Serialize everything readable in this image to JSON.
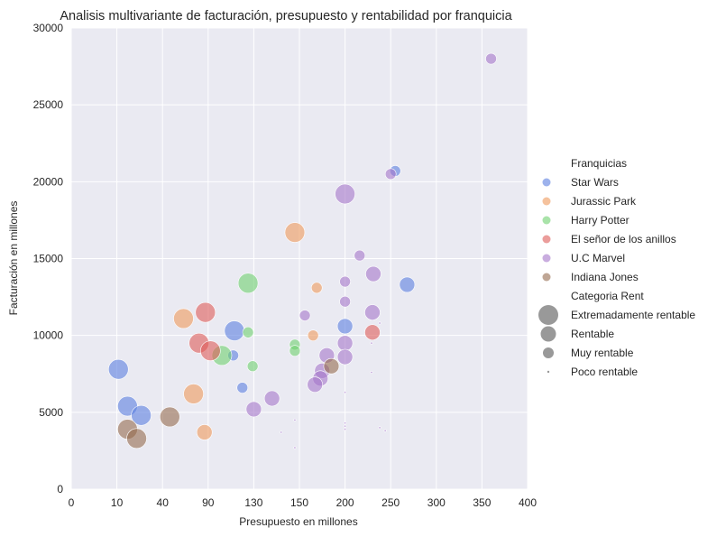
{
  "chart_data": {
    "type": "scatter",
    "title": "Analisis multivariante de facturación, presupuesto y rentabilidad por franquicia",
    "xlabel": "Presupuesto en millones",
    "ylabel": "Facturación en millones",
    "x_ticks": [
      "0",
      "10",
      "40",
      "90",
      "130",
      "150",
      "200",
      "250",
      "300",
      "350",
      "400"
    ],
    "y_ticks": [
      "0",
      "5000",
      "10000",
      "15000",
      "20000",
      "25000",
      "30000"
    ],
    "ylim": [
      0,
      30000
    ],
    "grid": true,
    "legend_position": "right",
    "legend": {
      "hue_title": "Franquicias",
      "size_title": "Categoria Rent",
      "size_levels": [
        "Extremadamente rentable",
        "Rentable",
        "Muy rentable",
        "Poco rentable"
      ]
    },
    "colors": {
      "Star Wars": "#5b7fe0",
      "Jurassic Park": "#ef9a5c",
      "Harry Potter": "#6fd070",
      "El señor de los anillos": "#dd5b58",
      "U.C Marvel": "#a577c9",
      "Indiana Jones": "#946b4f"
    },
    "series": [
      {
        "name": "Star Wars",
        "points": [
          {
            "x": 11,
            "y": 7800,
            "size": "Extremadamente rentable"
          },
          {
            "x": 17,
            "y": 5400,
            "size": "Extremadamente rentable"
          },
          {
            "x": 26,
            "y": 4800,
            "size": "Extremadamente rentable"
          },
          {
            "x": 113,
            "y": 10300,
            "size": "Extremadamente rentable"
          },
          {
            "x": 112,
            "y": 8700,
            "size": "Muy rentable"
          },
          {
            "x": 120,
            "y": 6600,
            "size": "Muy rentable"
          },
          {
            "x": 200,
            "y": 10600,
            "size": "Rentable"
          },
          {
            "x": 255,
            "y": 20700,
            "size": "Muy rentable"
          },
          {
            "x": 268,
            "y": 13300,
            "size": "Rentable"
          }
        ]
      },
      {
        "name": "Jurassic Park",
        "points": [
          {
            "x": 63,
            "y": 11100,
            "size": "Extremadamente rentable"
          },
          {
            "x": 74,
            "y": 6200,
            "size": "Extremadamente rentable"
          },
          {
            "x": 148,
            "y": 16700,
            "size": "Extremadamente rentable"
          },
          {
            "x": 86,
            "y": 3700,
            "size": "Rentable"
          },
          {
            "x": 169,
            "y": 13100,
            "size": "Muy rentable"
          },
          {
            "x": 165,
            "y": 10000,
            "size": "Muy rentable"
          }
        ]
      },
      {
        "name": "Harry Potter",
        "points": [
          {
            "x": 125,
            "y": 13400,
            "size": "Extremadamente rentable"
          },
          {
            "x": 102,
            "y": 8700,
            "size": "Extremadamente rentable"
          },
          {
            "x": 125,
            "y": 10200,
            "size": "Muy rentable"
          },
          {
            "x": 129,
            "y": 8000,
            "size": "Muy rentable"
          },
          {
            "x": 148,
            "y": 9400,
            "size": "Muy rentable"
          },
          {
            "x": 148,
            "y": 9000,
            "size": "Muy rentable"
          }
        ]
      },
      {
        "name": "El señor de los anillos",
        "points": [
          {
            "x": 87,
            "y": 11500,
            "size": "Extremadamente rentable"
          },
          {
            "x": 80,
            "y": 9500,
            "size": "Extremadamente rentable"
          },
          {
            "x": 92,
            "y": 9000,
            "size": "Extremadamente rentable"
          },
          {
            "x": 230,
            "y": 10200,
            "size": "Rentable"
          }
        ]
      },
      {
        "name": "U.C Marvel",
        "points": [
          {
            "x": 360,
            "y": 28000,
            "size": "Muy rentable"
          },
          {
            "x": 250,
            "y": 20500,
            "size": "Muy rentable"
          },
          {
            "x": 200,
            "y": 19200,
            "size": "Extremadamente rentable"
          },
          {
            "x": 216,
            "y": 15200,
            "size": "Muy rentable"
          },
          {
            "x": 200,
            "y": 13500,
            "size": "Muy rentable"
          },
          {
            "x": 231,
            "y": 14000,
            "size": "Rentable"
          },
          {
            "x": 200,
            "y": 12200,
            "size": "Muy rentable"
          },
          {
            "x": 156,
            "y": 11300,
            "size": "Muy rentable"
          },
          {
            "x": 230,
            "y": 11500,
            "size": "Rentable"
          },
          {
            "x": 200,
            "y": 9500,
            "size": "Rentable"
          },
          {
            "x": 200,
            "y": 8600,
            "size": "Rentable"
          },
          {
            "x": 180,
            "y": 8700,
            "size": "Rentable"
          },
          {
            "x": 175,
            "y": 7700,
            "size": "Rentable"
          },
          {
            "x": 173,
            "y": 7200,
            "size": "Rentable"
          },
          {
            "x": 167,
            "y": 6800,
            "size": "Rentable"
          },
          {
            "x": 138,
            "y": 5900,
            "size": "Rentable"
          },
          {
            "x": 130,
            "y": 5200,
            "size": "Rentable"
          },
          {
            "x": 238,
            "y": 10800,
            "size": "Poco rentable"
          },
          {
            "x": 229,
            "y": 9500,
            "size": "Poco rentable"
          },
          {
            "x": 229,
            "y": 7600,
            "size": "Poco rentable"
          },
          {
            "x": 200,
            "y": 6300,
            "size": "Poco rentable"
          },
          {
            "x": 148,
            "y": 4500,
            "size": "Poco rentable"
          },
          {
            "x": 200,
            "y": 4300,
            "size": "Poco rentable"
          },
          {
            "x": 200,
            "y": 4100,
            "size": "Poco rentable"
          },
          {
            "x": 200,
            "y": 3900,
            "size": "Poco rentable"
          },
          {
            "x": 238,
            "y": 4000,
            "size": "Poco rentable"
          },
          {
            "x": 244,
            "y": 3800,
            "size": "Poco rentable"
          },
          {
            "x": 142,
            "y": 3700,
            "size": "Poco rentable"
          },
          {
            "x": 148,
            "y": 2700,
            "size": "Poco rentable"
          }
        ]
      },
      {
        "name": "Indiana Jones",
        "points": [
          {
            "x": 17,
            "y": 3900,
            "size": "Extremadamente rentable"
          },
          {
            "x": 23,
            "y": 3300,
            "size": "Extremadamente rentable"
          },
          {
            "x": 48,
            "y": 4700,
            "size": "Extremadamente rentable"
          },
          {
            "x": 185,
            "y": 8000,
            "size": "Rentable"
          }
        ]
      }
    ]
  }
}
